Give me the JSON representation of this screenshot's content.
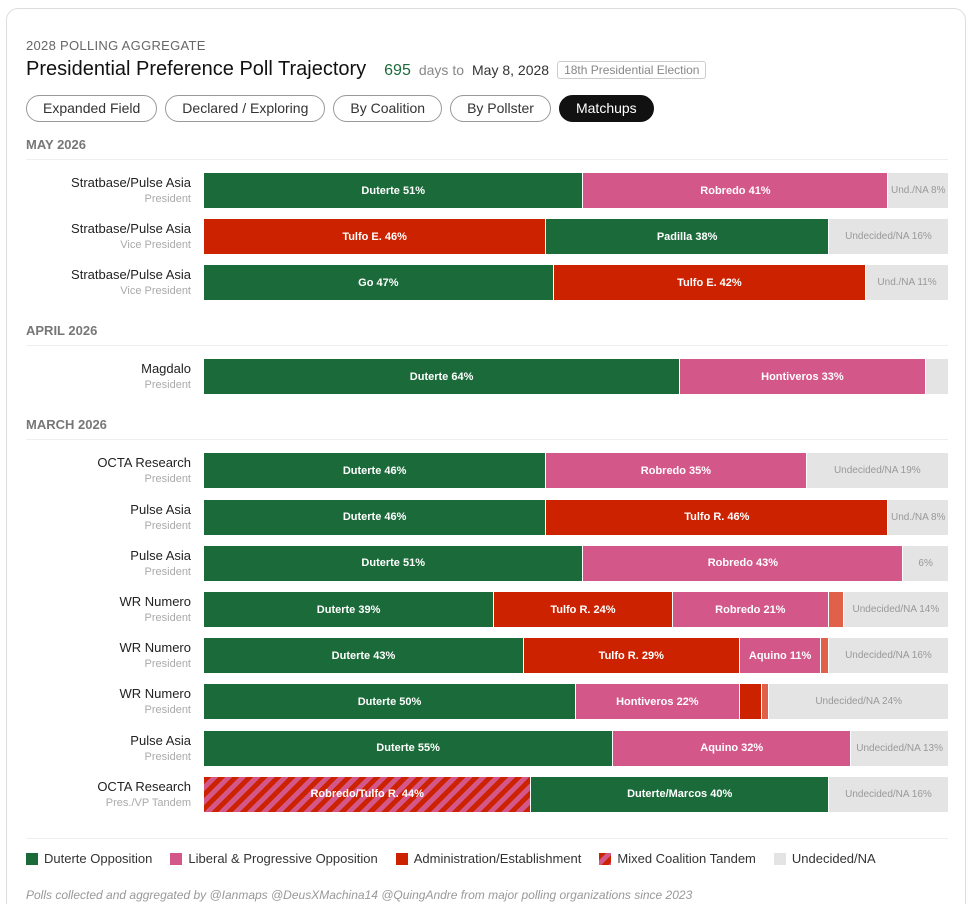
{
  "header": {
    "kicker": "2028 POLLING AGGREGATE",
    "title": "Presidential Preference Poll Trajectory",
    "countdown": "695",
    "countdown_label": "days to",
    "date": "May 8, 2028",
    "badge": "18th Presidential Election"
  },
  "tabs": {
    "items": [
      "Expanded Field",
      "Declared / Exploring",
      "By Coalition",
      "By Pollster",
      "Matchups"
    ],
    "active": 4
  },
  "groups": [
    {
      "label": "MAY 2026",
      "polls": [
        {
          "pollster": "Stratbase/Pulse Asia",
          "office": "President",
          "segments": [
            {
              "label": "Duterte 51%",
              "value": 51,
              "color": "#1b6b3a"
            },
            {
              "label": "Robredo 41%",
              "value": 41,
              "color": "#d4578a"
            },
            {
              "label": "Und./NA 8%",
              "value": 8,
              "color": "#e4e4e4"
            }
          ]
        },
        {
          "pollster": "Stratbase/Pulse Asia",
          "office": "Vice President",
          "segments": [
            {
              "label": "Tulfo E. 46%",
              "value": 46,
              "color": "#cc2200"
            },
            {
              "label": "Padilla 38%",
              "value": 38,
              "color": "#1b6b3a"
            },
            {
              "label": "Undecided/NA 16%",
              "value": 16,
              "color": "#e4e4e4"
            }
          ]
        },
        {
          "pollster": "Stratbase/Pulse Asia",
          "office": "Vice President",
          "segments": [
            {
              "label": "Go 47%",
              "value": 47,
              "color": "#1b6b3a"
            },
            {
              "label": "Tulfo E. 42%",
              "value": 42,
              "color": "#cc2200"
            },
            {
              "label": "Und./NA 11%",
              "value": 11,
              "color": "#e4e4e4"
            }
          ]
        }
      ]
    },
    {
      "label": "APRIL 2026",
      "polls": [
        {
          "pollster": "Magdalo",
          "office": "President",
          "segments": [
            {
              "label": "Duterte 64%",
              "value": 64,
              "color": "#1b6b3a"
            },
            {
              "label": "Hontiveros 33%",
              "value": 33,
              "color": "#d4578a"
            },
            {
              "value": 3,
              "color": "#e4e4e4"
            }
          ]
        }
      ]
    },
    {
      "label": "MARCH 2026",
      "polls": [
        {
          "pollster": "OCTA Research",
          "office": "President",
          "segments": [
            {
              "label": "Duterte 46%",
              "value": 46,
              "color": "#1b6b3a"
            },
            {
              "label": "Robredo 35%",
              "value": 35,
              "color": "#d4578a"
            },
            {
              "label": "Undecided/NA 19%",
              "value": 19,
              "color": "#e4e4e4"
            }
          ]
        },
        {
          "pollster": "Pulse Asia",
          "office": "President",
          "segments": [
            {
              "label": "Duterte 46%",
              "value": 46,
              "color": "#1b6b3a"
            },
            {
              "label": "Tulfo R. 46%",
              "value": 46,
              "color": "#cc2200"
            },
            {
              "label": "Und./NA 8%",
              "value": 8,
              "color": "#e4e4e4"
            }
          ]
        },
        {
          "pollster": "Pulse Asia",
          "office": "President",
          "segments": [
            {
              "label": "Duterte 51%",
              "value": 51,
              "color": "#1b6b3a"
            },
            {
              "label": "Robredo 43%",
              "value": 43,
              "color": "#d4578a"
            },
            {
              "label": "6%",
              "value": 6,
              "color": "#e4e4e4"
            }
          ]
        },
        {
          "pollster": "WR Numero",
          "office": "President",
          "segments": [
            {
              "label": "Duterte 39%",
              "value": 39,
              "color": "#1b6b3a"
            },
            {
              "label": "Tulfo R. 24%",
              "value": 24,
              "color": "#cc2200"
            },
            {
              "label": "Robredo 21%",
              "value": 21,
              "color": "#d4578a"
            },
            {
              "value": 2,
              "color": "#e0604a"
            },
            {
              "label": "Undecided/NA 14%",
              "value": 14,
              "color": "#e4e4e4"
            }
          ]
        },
        {
          "pollster": "WR Numero",
          "office": "President",
          "segments": [
            {
              "label": "Duterte 43%",
              "value": 43,
              "color": "#1b6b3a"
            },
            {
              "label": "Tulfo R. 29%",
              "value": 29,
              "color": "#cc2200"
            },
            {
              "label": "Aquino 11%",
              "value": 11,
              "color": "#d4578a"
            },
            {
              "value": 1,
              "color": "#e0604a"
            },
            {
              "label": "Undecided/NA 16%",
              "value": 16,
              "color": "#e4e4e4"
            }
          ]
        },
        {
          "pollster": "WR Numero",
          "office": "President",
          "segments": [
            {
              "label": "Duterte 50%",
              "value": 50,
              "color": "#1b6b3a"
            },
            {
              "label": "Hontiveros 22%",
              "value": 22,
              "color": "#d4578a"
            },
            {
              "value": 3,
              "color": "#cc2200"
            },
            {
              "value": 1,
              "color": "#e0604a"
            },
            {
              "label": "Undecided/NA 24%",
              "value": 24,
              "color": "#e4e4e4"
            }
          ]
        },
        {
          "pollster": "Pulse Asia",
          "office": "President",
          "segments": [
            {
              "label": "Duterte 55%",
              "value": 55,
              "color": "#1b6b3a"
            },
            {
              "label": "Aquino 32%",
              "value": 32,
              "color": "#d4578a"
            },
            {
              "label": "Undecided/NA 13%",
              "value": 13,
              "color": "#e4e4e4"
            }
          ]
        },
        {
          "pollster": "OCTA Research",
          "office": "Pres./VP Tandem",
          "segments": [
            {
              "label": "Robredo/Tulfo R. 44%",
              "value": 44,
              "colors": [
                "#cc2200",
                "#d4578a"
              ]
            },
            {
              "label": "Duterte/Marcos 40%",
              "value": 40,
              "color": "#1b6b3a"
            },
            {
              "label": "Undecided/NA 16%",
              "value": 16,
              "color": "#e4e4e4"
            }
          ]
        }
      ]
    }
  ],
  "legend": [
    {
      "label": "Duterte Opposition",
      "color": "#1b6b3a"
    },
    {
      "label": "Liberal & Progressive Opposition",
      "color": "#d4578a"
    },
    {
      "label": "Administration/Establishment",
      "color": "#cc2200"
    },
    {
      "label": "Mixed Coalition Tandem",
      "colors": [
        "#cc2200",
        "#d4578a"
      ]
    },
    {
      "label": "Undecided/NA",
      "color": "#e4e4e4"
    }
  ],
  "footer": "Polls collected and aggregated by @Ianmaps @DeusXMachina14 @QuingAndre from major polling organizations since 2023"
}
